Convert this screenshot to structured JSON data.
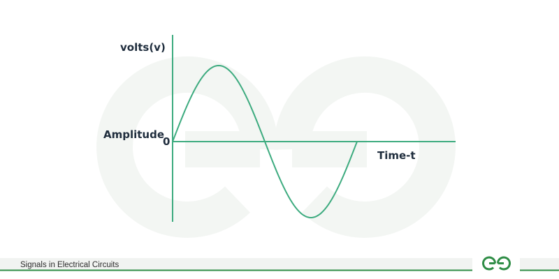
{
  "diagram": {
    "y_axis_label": "volts(v)",
    "amplitude_label": "Amplitude",
    "origin_label": "0",
    "x_axis_label": "Time-t"
  },
  "footer": {
    "caption": "Signals in Electrical Circuits"
  },
  "colors": {
    "accent": "#3dab7f",
    "watermark": "#f3f6f3",
    "footer_bar": "#f1f3f1",
    "footer_line": "#2f8d46",
    "text": "#1f2d3d",
    "logo": "#2f8d46"
  },
  "icons": {
    "watermark": "geeksforgeeks-watermark-icon",
    "logo": "geeksforgeeks-logo-icon"
  }
}
